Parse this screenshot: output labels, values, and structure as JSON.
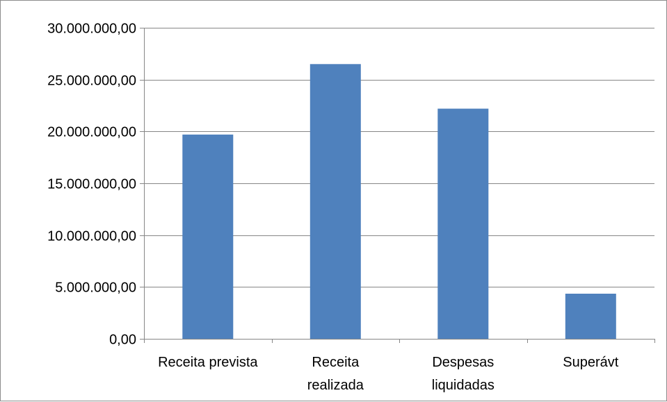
{
  "chart_data": {
    "type": "bar",
    "categories": [
      "Receita prevista",
      "Receita realizada",
      "Despesas liquidadas",
      "Superávt"
    ],
    "category_label_lines": [
      [
        "Receita prevista"
      ],
      [
        "Receita",
        "realizada"
      ],
      [
        "Despesas",
        "liquidadas"
      ],
      [
        "Superávt"
      ]
    ],
    "values": [
      19700000,
      26500000,
      22200000,
      4350000
    ],
    "ylim": [
      0,
      30000000
    ],
    "y_ticks": [
      0,
      5000000,
      10000000,
      15000000,
      20000000,
      25000000,
      30000000
    ],
    "y_tick_labels": [
      "0,00",
      "5.000.000,00",
      "10.000.000,00",
      "15.000.000,00",
      "20.000.000,00",
      "25.000.000,00",
      "30.000.000,00"
    ],
    "title": "",
    "xlabel": "",
    "ylabel": "",
    "grid": true,
    "legend": "none",
    "colors": {
      "bar": "#4f81bd",
      "grid": "#868686",
      "axis": "#868686",
      "border": "#8c8c8c"
    }
  }
}
